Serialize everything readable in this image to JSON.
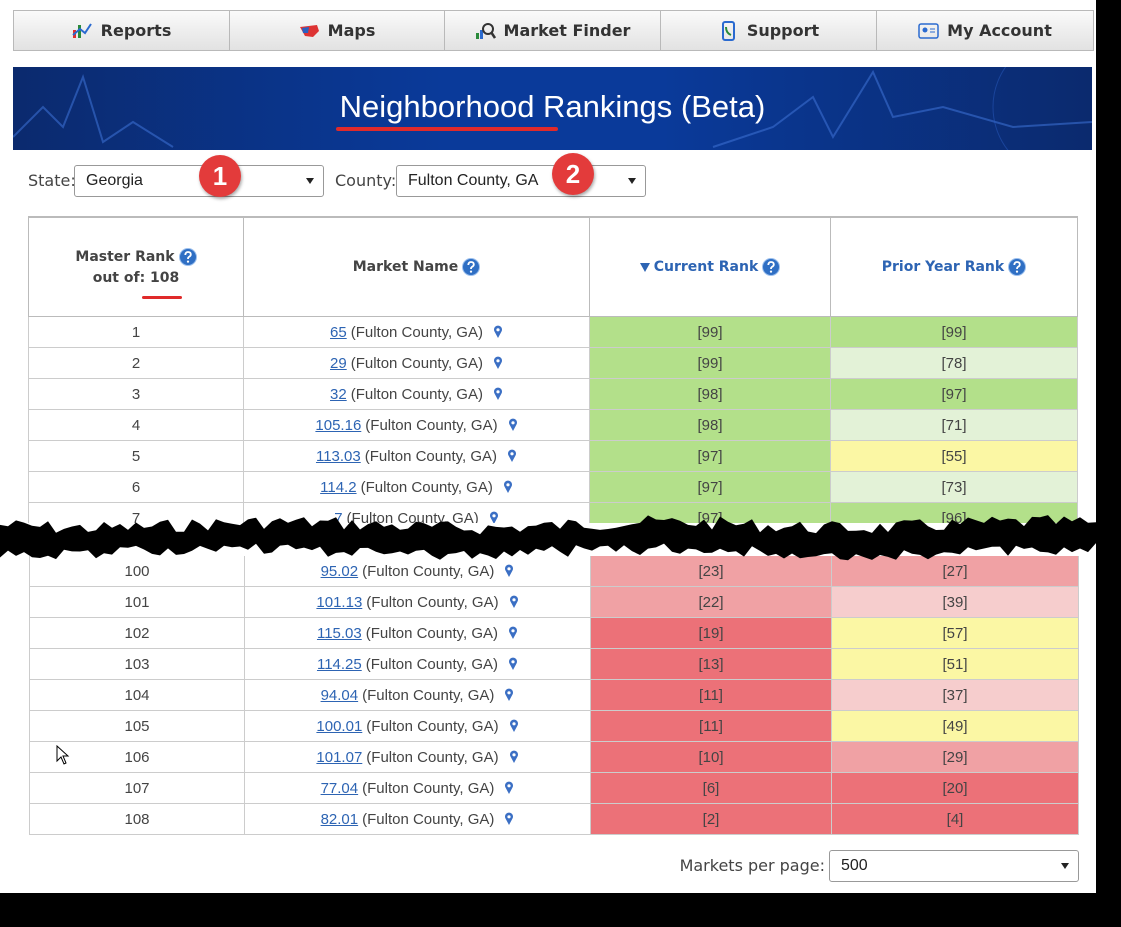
{
  "nav": [
    "Reports",
    "Maps",
    "Market Finder",
    "Support",
    "My Account"
  ],
  "header": {
    "title": "Neighborhood Rankings (Beta)"
  },
  "filters": {
    "state_label": "State:",
    "state": "Georgia",
    "county_label": "County:",
    "county": "Fulton County, GA",
    "badges": [
      "1",
      "2"
    ]
  },
  "table": {
    "headers": {
      "master_rank": "Master Rank",
      "out_of": "out of: 108",
      "market_name": "Market Name",
      "current_rank": "Current Rank",
      "prior_year_rank": "Prior Year Rank"
    },
    "top_rows": [
      {
        "rank": 1,
        "market": "65",
        "county": "(Fulton County, GA)",
        "current": "[99]",
        "current_color": "green",
        "prior": "[99]",
        "prior_color": "green"
      },
      {
        "rank": 2,
        "market": "29",
        "county": "(Fulton County, GA)",
        "current": "[99]",
        "current_color": "green",
        "prior": "[78]",
        "prior_color": "light-green"
      },
      {
        "rank": 3,
        "market": "32",
        "county": "(Fulton County, GA)",
        "current": "[98]",
        "current_color": "green",
        "prior": "[97]",
        "prior_color": "green"
      },
      {
        "rank": 4,
        "market": "105.16",
        "county": "(Fulton County, GA)",
        "current": "[98]",
        "current_color": "green",
        "prior": "[71]",
        "prior_color": "light-green"
      },
      {
        "rank": 5,
        "market": "113.03",
        "county": "(Fulton County, GA)",
        "current": "[97]",
        "current_color": "green",
        "prior": "[55]",
        "prior_color": "yellow"
      },
      {
        "rank": 6,
        "market": "114.2",
        "county": "(Fulton County, GA)",
        "current": "[97]",
        "current_color": "green",
        "prior": "[73]",
        "prior_color": "light-green"
      },
      {
        "rank": 7,
        "market": "7",
        "county": "(Fulton County, GA)",
        "current": "[97]",
        "current_color": "green",
        "prior": "[96]",
        "prior_color": "green"
      }
    ],
    "bottom_rows": [
      {
        "rank": 100,
        "market": "95.02",
        "county": "(Fulton County, GA)",
        "current": "[23]",
        "current_color": "medium-red",
        "prior": "[27]",
        "prior_color": "medium-red"
      },
      {
        "rank": 101,
        "market": "101.13",
        "county": "(Fulton County, GA)",
        "current": "[22]",
        "current_color": "medium-red",
        "prior": "[39]",
        "prior_color": "light-red"
      },
      {
        "rank": 102,
        "market": "115.03",
        "county": "(Fulton County, GA)",
        "current": "[19]",
        "current_color": "red",
        "prior": "[57]",
        "prior_color": "yellow"
      },
      {
        "rank": 103,
        "market": "114.25",
        "county": "(Fulton County, GA)",
        "current": "[13]",
        "current_color": "red",
        "prior": "[51]",
        "prior_color": "yellow"
      },
      {
        "rank": 104,
        "market": "94.04",
        "county": "(Fulton County, GA)",
        "current": "[11]",
        "current_color": "red",
        "prior": "[37]",
        "prior_color": "light-red"
      },
      {
        "rank": 105,
        "market": "100.01",
        "county": "(Fulton County, GA)",
        "current": "[11]",
        "current_color": "red",
        "prior": "[49]",
        "prior_color": "yellow"
      },
      {
        "rank": 106,
        "market": "101.07",
        "county": "(Fulton County, GA)",
        "current": "[10]",
        "current_color": "red",
        "prior": "[29]",
        "prior_color": "medium-red"
      },
      {
        "rank": 107,
        "market": "77.04",
        "county": "(Fulton County, GA)",
        "current": "[6]",
        "current_color": "red",
        "prior": "[20]",
        "prior_color": "red"
      },
      {
        "rank": 108,
        "market": "82.01",
        "county": "(Fulton County, GA)",
        "current": "[2]",
        "current_color": "red",
        "prior": "[4]",
        "prior_color": "red"
      }
    ]
  },
  "footer": {
    "per_page_label": "Markets per page:",
    "per_page": "500"
  }
}
